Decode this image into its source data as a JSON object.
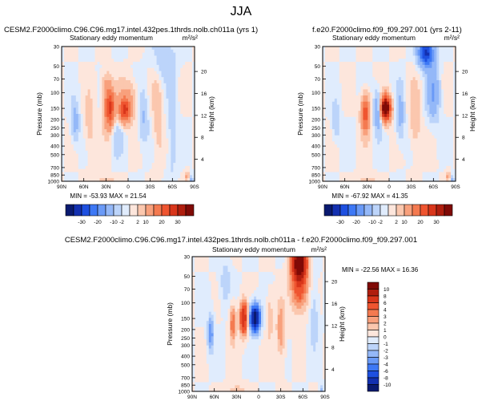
{
  "page_title": "JJA",
  "chart_data": [
    {
      "type": "heatmap",
      "panel": "top-left",
      "case_title": "CESM2.F2000climo.C96.C96.mg17.intel.432pes.1thrds.nolb.ch011a (yrs 1)",
      "variable": "Stationary eddy momentum",
      "units": "m²/s²",
      "ylabel": "Pressure (mb)",
      "right_label": "Height (km)",
      "x_ticks": [
        "90N",
        "60N",
        "30N",
        "0",
        "30S",
        "60S",
        "90S"
      ],
      "y_ticks": [
        "30",
        "50",
        "70",
        "100",
        "150",
        "200",
        "250",
        "300",
        "400",
        "500",
        "700",
        "850",
        "1000"
      ],
      "height_ticks": [
        "20",
        "16",
        "12",
        "8",
        "4"
      ],
      "stats_text": "MIN = -53.93  MAX = 21.54",
      "min": -53.93,
      "max": 21.54,
      "blobs": [
        {
          "lat": 5,
          "p": 160,
          "amp": 20,
          "sx": 5,
          "sy": 0.22
        },
        {
          "lat": -2,
          "p": 120,
          "amp": 6,
          "sx": 10,
          "sy": 0.35
        },
        {
          "lat": 25,
          "p": 150,
          "amp": 22,
          "sx": 5,
          "sy": 0.35
        },
        {
          "lat": 30,
          "p": 80,
          "amp": 5,
          "sx": 5,
          "sy": 0.25
        },
        {
          "lat": 72,
          "p": 220,
          "amp": -8,
          "sx": 4,
          "sy": 0.35
        },
        {
          "lat": 52,
          "p": 250,
          "amp": 4,
          "sx": 5,
          "sy": 0.5
        },
        {
          "lat": 15,
          "p": 300,
          "amp": -4,
          "sx": 5,
          "sy": 0.4
        },
        {
          "lat": -20,
          "p": 180,
          "amp": -6,
          "sx": 5,
          "sy": 0.5
        },
        {
          "lat": -40,
          "p": 200,
          "amp": 4,
          "sx": 5,
          "sy": 0.8
        },
        {
          "lat": -50,
          "p": 40,
          "amp": -5,
          "sx": 10,
          "sy": 0.4
        },
        {
          "lat": -60,
          "p": 300,
          "amp": -4,
          "sx": 5,
          "sy": 0.8
        },
        {
          "lat": -80,
          "p": 900,
          "amp": 6,
          "sx": 2,
          "sy": 0.12
        },
        {
          "lat": -85,
          "p": 970,
          "amp": -10,
          "sx": 2,
          "sy": 0.08
        },
        {
          "lat": 30,
          "p": 980,
          "amp": 4,
          "sx": 8,
          "sy": 0.1
        }
      ],
      "base": 1.5
    },
    {
      "type": "heatmap",
      "panel": "top-right",
      "case_title": "f.e20.F2000climo.f09_f09.297.001 (yrs 2-11)",
      "variable": "Stationary eddy momentum",
      "units": "m²/s²",
      "ylabel": "Pressure (mb)",
      "right_label": "Height (km)",
      "x_ticks": [
        "90N",
        "60N",
        "30N",
        "0",
        "30S",
        "60S",
        "90S"
      ],
      "y_ticks": [
        "30",
        "50",
        "70",
        "100",
        "150",
        "200",
        "250",
        "300",
        "400",
        "500",
        "700",
        "850",
        "1000"
      ],
      "height_ticks": [
        "20",
        "16",
        "12",
        "8",
        "4"
      ],
      "stats_text": "MIN = -67.92  MAX = 41.35",
      "min": -67.92,
      "max": 41.35,
      "blobs": [
        {
          "lat": 5,
          "p": 150,
          "amp": 40,
          "sx": 5,
          "sy": 0.22
        },
        {
          "lat": 32,
          "p": 170,
          "amp": 18,
          "sx": 4,
          "sy": 0.35
        },
        {
          "lat": 15,
          "p": 160,
          "amp": -12,
          "sx": 4,
          "sy": 0.35
        },
        {
          "lat": -50,
          "p": 35,
          "amp": -28,
          "sx": 7,
          "sy": 0.25
        },
        {
          "lat": -60,
          "p": 100,
          "amp": -10,
          "sx": 6,
          "sy": 0.5
        },
        {
          "lat": 72,
          "p": 220,
          "amp": -5,
          "sx": 4,
          "sy": 0.35
        },
        {
          "lat": -15,
          "p": 180,
          "amp": -7,
          "sx": 4,
          "sy": 0.5
        },
        {
          "lat": -35,
          "p": 200,
          "amp": 5,
          "sx": 5,
          "sy": 0.6
        },
        {
          "lat": -80,
          "p": 900,
          "amp": 6,
          "sx": 2,
          "sy": 0.12
        },
        {
          "lat": -85,
          "p": 970,
          "amp": -10,
          "sx": 2,
          "sy": 0.08
        },
        {
          "lat": 30,
          "p": 980,
          "amp": 4,
          "sx": 8,
          "sy": 0.1
        }
      ],
      "base": 1.5
    },
    {
      "type": "heatmap",
      "panel": "bottom",
      "case_title": "CESM2.F2000climo.C96.C96.mg17.intel.432pes.1thrds.nolb.ch011a - f.e20.F2000climo.f09_f09.297.001",
      "variable": "Stationary eddy momentum",
      "units": "m²/s²",
      "ylabel": "Pressure (mb)",
      "right_label": "Height (km)",
      "x_ticks": [
        "90N",
        "60N",
        "30N",
        "0",
        "30S",
        "60S",
        "90S"
      ],
      "y_ticks": [
        "30",
        "50",
        "70",
        "100",
        "150",
        "200",
        "250",
        "300",
        "400",
        "500",
        "700",
        "850",
        "1000"
      ],
      "height_ticks": [
        "20",
        "16",
        "12",
        "8",
        "4"
      ],
      "stats_text": "MIN = -22.56   MAX = 16.36",
      "min": -22.56,
      "max": 16.36,
      "blobs": [
        {
          "lat": 20,
          "p": 150,
          "amp": 8,
          "sx": 4,
          "sy": 0.3
        },
        {
          "lat": 35,
          "p": 170,
          "amp": 4,
          "sx": 3,
          "sy": 0.35
        },
        {
          "lat": 5,
          "p": 150,
          "amp": -12,
          "sx": 5,
          "sy": 0.25
        },
        {
          "lat": -55,
          "p": 35,
          "amp": 13,
          "sx": 7,
          "sy": 0.3
        },
        {
          "lat": -55,
          "p": 70,
          "amp": 5,
          "sx": 8,
          "sy": 0.4
        },
        {
          "lat": 65,
          "p": 220,
          "amp": -4,
          "sx": 3,
          "sy": 0.35
        },
        {
          "lat": -30,
          "p": 200,
          "amp": 3,
          "sx": 4,
          "sy": 0.5
        },
        {
          "lat": -15,
          "p": 150,
          "amp": 2,
          "sx": 3,
          "sy": 0.4
        },
        {
          "lat": -75,
          "p": 150,
          "amp": -2,
          "sx": 4,
          "sy": 0.6
        },
        {
          "lat": 45,
          "p": 60,
          "amp": -2,
          "sx": 5,
          "sy": 0.4
        },
        {
          "lat": -85,
          "p": 970,
          "amp": -3,
          "sx": 2,
          "sy": 0.08
        },
        {
          "lat": 30,
          "p": 980,
          "amp": 2,
          "sx": 8,
          "sy": 0.1
        }
      ],
      "base": 0.3
    }
  ],
  "colorbar_top": {
    "labels": [
      "-30",
      "-20",
      "-10",
      "-2",
      "2",
      "10",
      "20",
      "30"
    ],
    "levels": [
      -40,
      -30,
      -25,
      -20,
      -15,
      -10,
      -5,
      -2,
      0,
      2,
      5,
      10,
      15,
      20,
      25,
      30,
      40
    ],
    "colors": [
      "#0a1a70",
      "#1330b0",
      "#1e50e0",
      "#3d78f5",
      "#6a9af7",
      "#94b8f8",
      "#bcd4fa",
      "#e0ecfd",
      "#fde6dc",
      "#fbc7ae",
      "#f8a07c",
      "#f47a50",
      "#ef5530",
      "#d9361b",
      "#b01e0e",
      "#800a06"
    ]
  },
  "colorbar_bottom": {
    "labels": [
      "10",
      "8",
      "6",
      "4",
      "3",
      "2",
      "1",
      "0",
      "-1",
      "-2",
      "-3",
      "-4",
      "-6",
      "-8",
      "-10"
    ],
    "levels": [
      -14,
      -10,
      -8,
      -6,
      -4,
      -3,
      -2,
      -1,
      0,
      1,
      2,
      3,
      4,
      6,
      8,
      10,
      14
    ],
    "colors": [
      "#0a1a70",
      "#1330b0",
      "#1e50e0",
      "#3d78f5",
      "#6a9af7",
      "#94b8f8",
      "#bcd4fa",
      "#e0ecfd",
      "#fde6dc",
      "#fbc7ae",
      "#f8a07c",
      "#f47a50",
      "#ef5530",
      "#d9361b",
      "#b01e0e",
      "#800a06"
    ]
  }
}
